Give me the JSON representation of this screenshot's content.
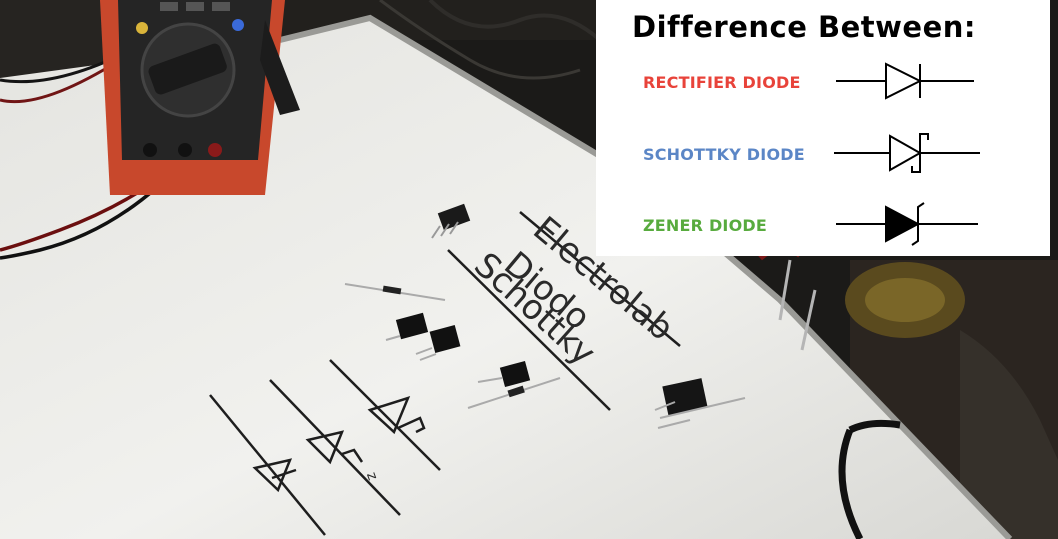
{
  "board": {
    "line1": "Electrolab",
    "line2": "Diodo",
    "line3": "Schottky",
    "zener_mark": "z"
  },
  "overlay": {
    "title": "Difference Between:",
    "rows": [
      {
        "label": "RECTIFIER DIODE",
        "color": "#e8433a",
        "symbol": "rectifier-diode-symbol"
      },
      {
        "label": "SCHOTTKY DIODE",
        "color": "#5b86c6",
        "symbol": "schottky-diode-symbol"
      },
      {
        "label": "ZENER DIODE",
        "color": "#58ab3e",
        "symbol": "zener-diode-symbol"
      }
    ]
  }
}
